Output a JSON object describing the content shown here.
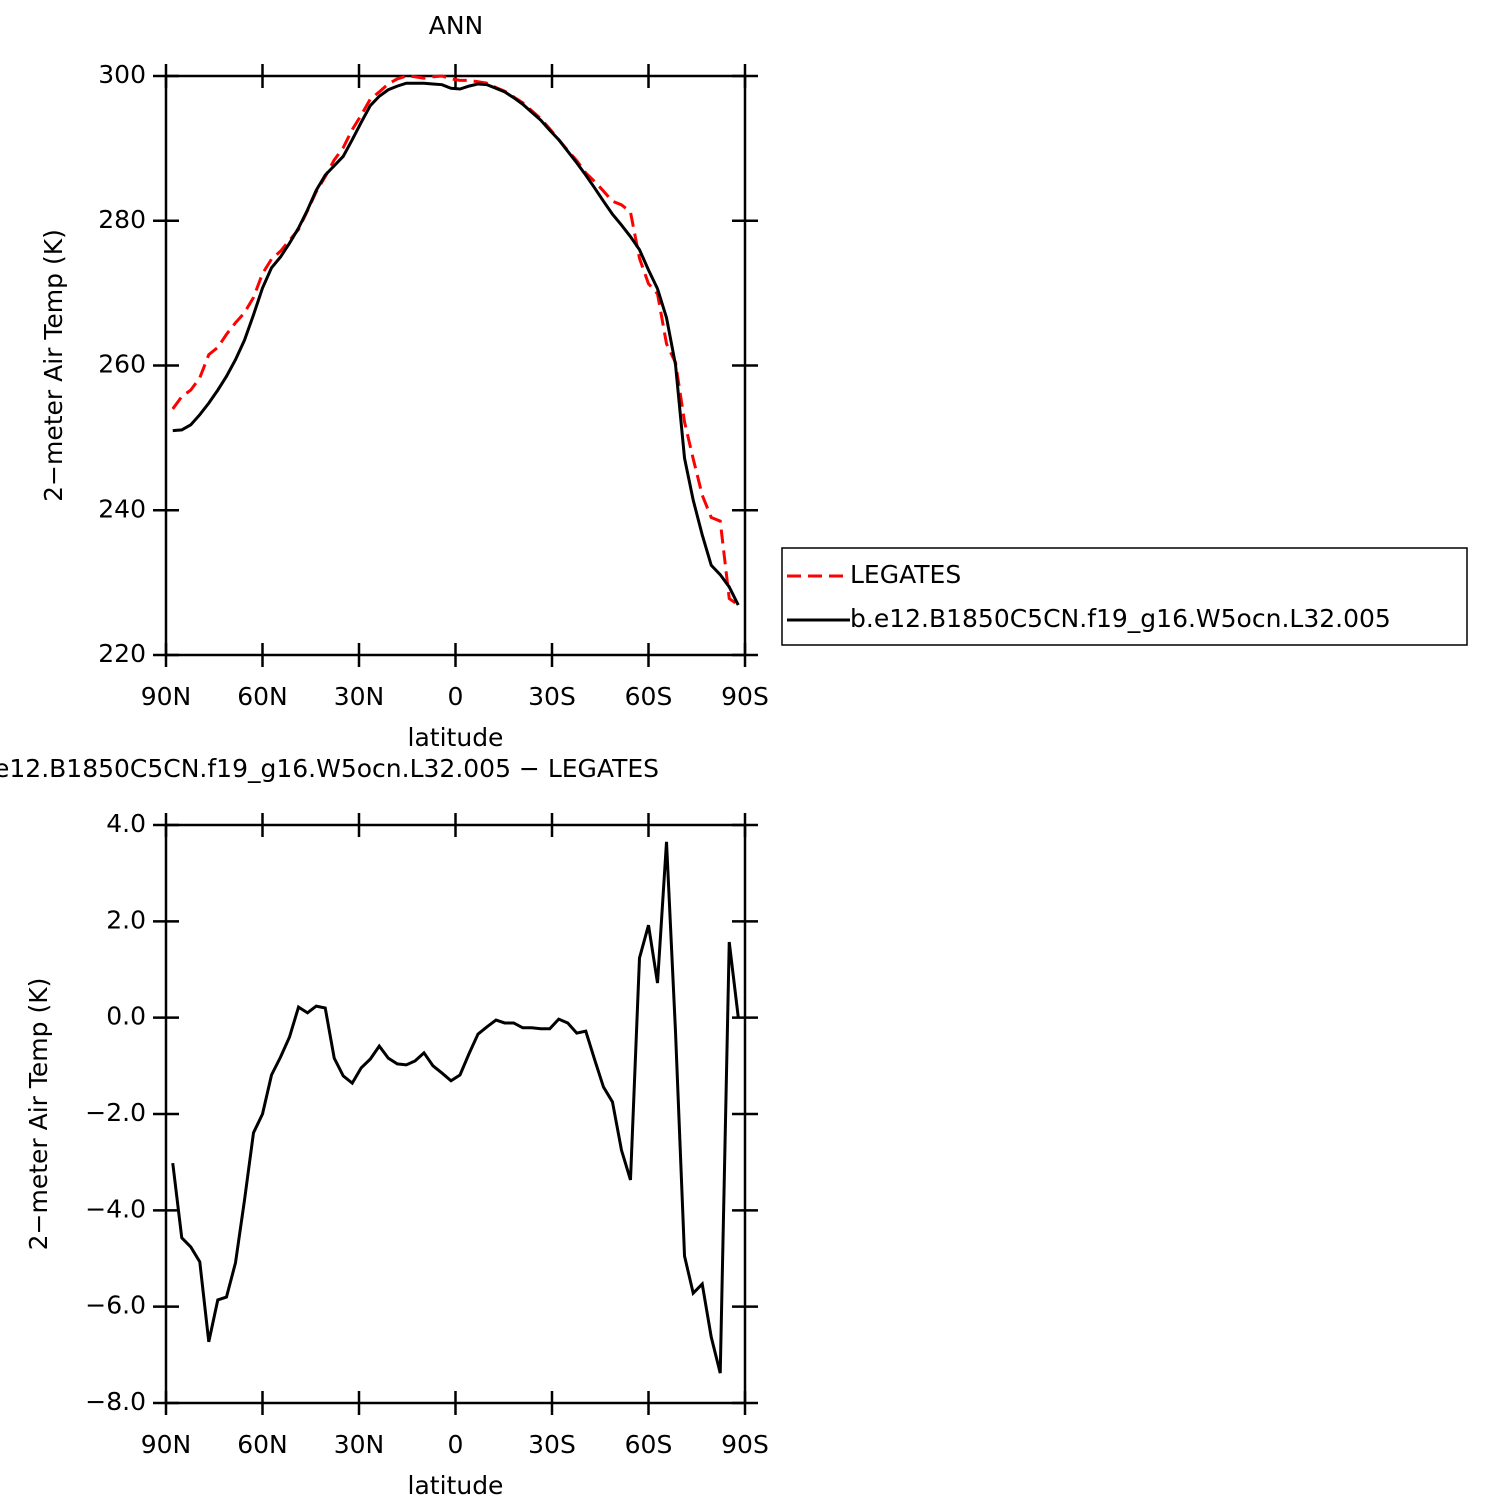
{
  "chart_data": [
    {
      "type": "line",
      "title": "ANN",
      "xlabel": "latitude",
      "ylabel": "2−meter Air Temp (K)",
      "x": [
        87.9,
        85.1,
        82.3,
        79.5,
        76.7,
        73.9,
        71.2,
        68.4,
        65.6,
        62.8,
        60.0,
        57.2,
        54.4,
        51.6,
        48.8,
        46.0,
        43.3,
        40.5,
        37.7,
        34.9,
        32.1,
        29.3,
        26.5,
        23.7,
        20.9,
        18.1,
        15.3,
        12.6,
        9.8,
        7.0,
        4.2,
        1.4,
        -1.4,
        -4.2,
        -7.0,
        -9.8,
        -12.6,
        -15.3,
        -18.1,
        -20.9,
        -23.7,
        -26.5,
        -29.3,
        -32.1,
        -34.9,
        -37.7,
        -40.5,
        -43.3,
        -46.0,
        -48.8,
        -51.6,
        -54.4,
        -57.2,
        -60.0,
        -62.8,
        -65.6,
        -68.4,
        -71.2,
        -73.9,
        -76.7,
        -79.5,
        -82.3,
        -85.1,
        -87.9
      ],
      "series": [
        {
          "name": "LEGATES",
          "color": "#ff0000",
          "linestyle": "dashed",
          "values": [
            254.0,
            255.7,
            256.6,
            258.3,
            261.5,
            262.5,
            264.3,
            265.9,
            267.3,
            269.4,
            272.7,
            274.7,
            275.8,
            277.3,
            278.8,
            281.4,
            284.0,
            286.1,
            288.4,
            290.1,
            292.6,
            294.6,
            296.8,
            297.8,
            298.9,
            299.6,
            300.0,
            299.9,
            299.7,
            299.9,
            300.0,
            299.6,
            299.4,
            299.4,
            299.2,
            299.0,
            298.4,
            297.9,
            297.1,
            296.3,
            295.2,
            294.1,
            292.7,
            291.2,
            289.7,
            288.3,
            286.6,
            285.4,
            284.1,
            282.7,
            282.2,
            281.2,
            274.8,
            271.3,
            269.9,
            263.0,
            260.4,
            252.2,
            247.1,
            242.1,
            239.0,
            238.5,
            227.8,
            226.9
          ]
        },
        {
          "name": "b.e12.B1850C5CN.f19_g16.W5ocn.L32.005",
          "color": "#000000",
          "linestyle": "solid",
          "values": [
            251.0,
            251.1,
            251.8,
            253.2,
            254.8,
            256.6,
            258.5,
            260.8,
            263.5,
            267.0,
            270.7,
            273.5,
            275.0,
            276.9,
            279.0,
            281.5,
            284.2,
            286.3,
            287.6,
            288.9,
            291.2,
            293.6,
            295.9,
            297.2,
            298.1,
            298.6,
            299.0,
            299.0,
            299.0,
            298.9,
            298.8,
            298.3,
            298.2,
            298.6,
            298.9,
            298.8,
            298.3,
            297.8,
            297.0,
            296.1,
            295.0,
            293.9,
            292.5,
            291.2,
            289.6,
            288.0,
            286.3,
            284.5,
            282.7,
            280.9,
            279.4,
            277.8,
            276.0,
            273.2,
            270.6,
            266.6,
            260.1,
            247.2,
            241.4,
            236.6,
            232.4,
            231.1,
            229.4,
            226.9
          ]
        }
      ],
      "xlim": [
        90,
        -90
      ],
      "xticks": [
        {
          "value": 90,
          "label": "90N"
        },
        {
          "value": 60,
          "label": "60N"
        },
        {
          "value": 30,
          "label": "30N"
        },
        0,
        {
          "value": -30,
          "label": "30S"
        },
        {
          "value": -60,
          "label": "60S"
        },
        {
          "value": -90,
          "label": "90S"
        }
      ],
      "ylim": [
        220,
        300
      ],
      "yticks": [
        220,
        240,
        260,
        280,
        300
      ],
      "legend": "right"
    },
    {
      "type": "line",
      "title": "e12.B1850C5CN.f19_g16.W5ocn.L32.005 − LEGATES",
      "xlabel": "latitude",
      "ylabel": "2−meter Air Temp (K)",
      "x": [
        87.9,
        85.1,
        82.3,
        79.5,
        76.7,
        73.9,
        71.2,
        68.4,
        65.6,
        62.8,
        60.0,
        57.2,
        54.4,
        51.6,
        48.8,
        46.0,
        43.3,
        40.5,
        37.7,
        34.9,
        32.1,
        29.3,
        26.5,
        23.7,
        20.9,
        18.1,
        15.3,
        12.6,
        9.8,
        7.0,
        4.2,
        1.4,
        -1.4,
        -4.2,
        -7.0,
        -9.8,
        -12.6,
        -15.3,
        -18.1,
        -20.9,
        -23.7,
        -26.5,
        -29.3,
        -32.1,
        -34.9,
        -37.7,
        -40.5,
        -43.3,
        -46.0,
        -48.8,
        -51.6,
        -54.4,
        -57.2,
        -60.0,
        -62.8,
        -65.6,
        -68.4,
        -71.2,
        -73.9,
        -76.7,
        -79.5,
        -82.3,
        -85.1,
        -87.9
      ],
      "series": [
        {
          "color": "#000000",
          "linestyle": "solid",
          "values": [
            -3.02,
            -4.57,
            -4.76,
            -5.07,
            -6.73,
            -5.86,
            -5.8,
            -5.09,
            -3.79,
            -2.39,
            -2.0,
            -1.19,
            -0.82,
            -0.4,
            0.22,
            0.1,
            0.24,
            0.2,
            -0.84,
            -1.21,
            -1.36,
            -1.04,
            -0.86,
            -0.59,
            -0.84,
            -0.96,
            -0.98,
            -0.9,
            -0.73,
            -1.0,
            -1.15,
            -1.31,
            -1.19,
            -0.75,
            -0.34,
            -0.19,
            -0.05,
            -0.11,
            -0.11,
            -0.21,
            -0.21,
            -0.23,
            -0.23,
            -0.03,
            -0.11,
            -0.32,
            -0.28,
            -0.88,
            -1.44,
            -1.75,
            -2.75,
            -3.37,
            1.24,
            1.92,
            0.72,
            3.65,
            -0.3,
            -4.95,
            -5.72,
            -5.53,
            -6.63,
            -7.38,
            1.57,
            0.01
          ]
        }
      ],
      "xlim": [
        90,
        -90
      ],
      "xticks": [
        {
          "value": 90,
          "label": "90N"
        },
        {
          "value": 60,
          "label": "60N"
        },
        {
          "value": 30,
          "label": "30N"
        },
        0,
        {
          "value": -30,
          "label": "30S"
        },
        {
          "value": -60,
          "label": "60S"
        },
        {
          "value": -90,
          "label": "90S"
        }
      ],
      "ylim": [
        -8,
        4
      ],
      "yticks": [
        {
          "value": -8,
          "label": "−8.0"
        },
        {
          "value": -6,
          "label": "−6.0"
        },
        {
          "value": -4,
          "label": "−4.0"
        },
        {
          "value": -2,
          "label": "−2.0"
        },
        {
          "value": 0,
          "label": "0.0"
        },
        {
          "value": 2,
          "label": "2.0"
        },
        {
          "value": 4,
          "label": "4.0"
        }
      ]
    }
  ]
}
